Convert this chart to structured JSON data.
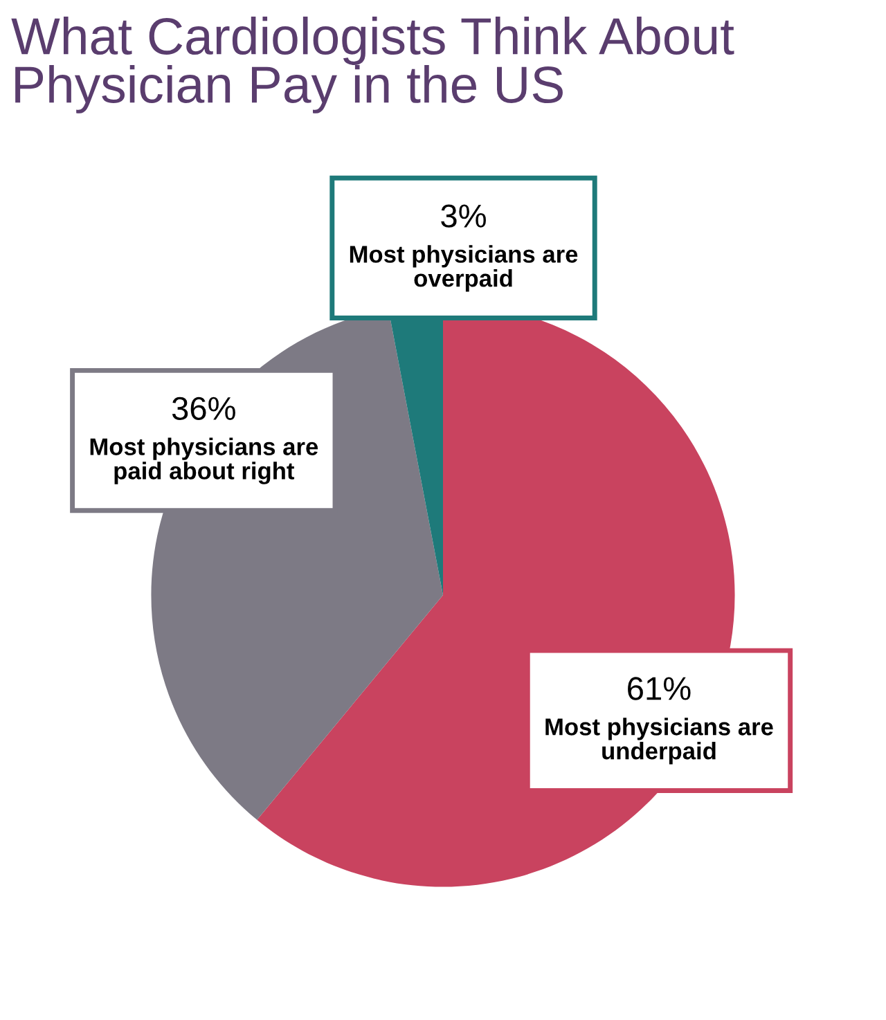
{
  "chart_data": {
    "type": "pie",
    "title": "What Cardiologists Think About\nPhysician Pay in the US",
    "categories": [
      "Most physicians are\nunderpaid",
      "Most physicians are\npaid about right",
      "Most physicians are\noverpaid"
    ],
    "values": [
      61,
      36,
      3
    ],
    "value_labels": [
      "61%",
      "36%",
      "3%"
    ],
    "colors": [
      "#c9435f",
      "#7d7a85",
      "#1e7a7a"
    ]
  }
}
